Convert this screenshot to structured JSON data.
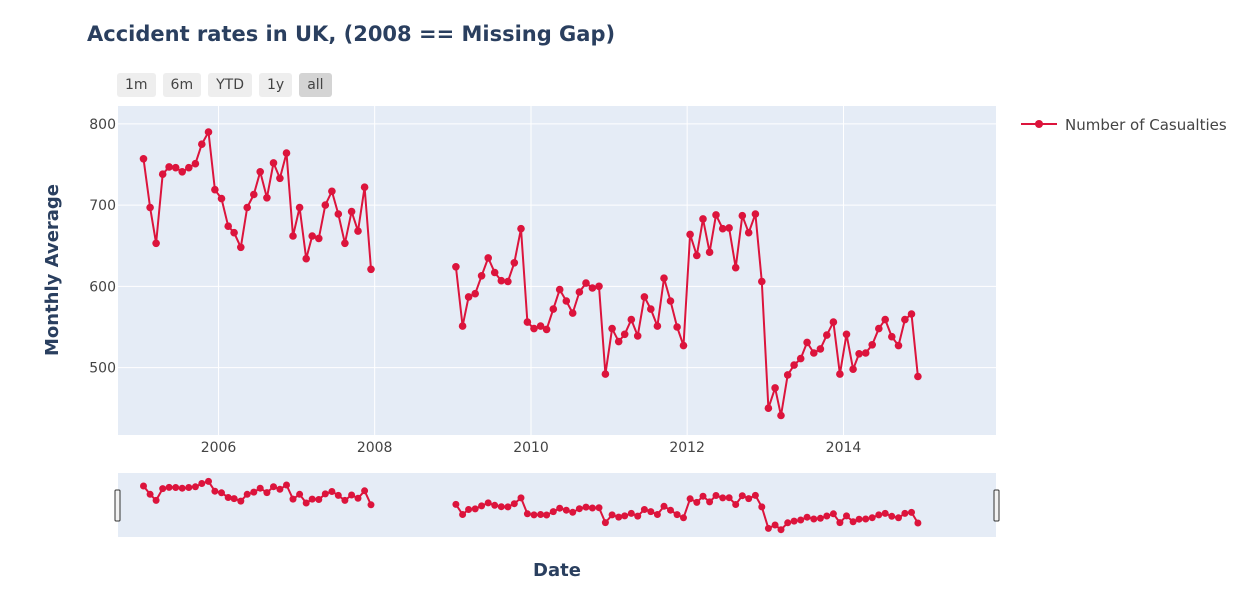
{
  "chart_data": {
    "type": "line",
    "title": "Accident rates in UK, (2008 == Missing Gap)",
    "xlabel": "Date",
    "ylabel": "Monthly Average",
    "x_tick_labels": [
      "2006",
      "2008",
      "2010",
      "2012",
      "2014"
    ],
    "y_tick_labels": [
      "500",
      "600",
      "700",
      "800"
    ],
    "x_range": [
      "2004-09-18",
      "2015-12-15"
    ],
    "ylim": [
      417,
      822
    ],
    "grid": true,
    "legend_position": "top-right",
    "has_range_slider": true,
    "range_selector": [
      "1m",
      "6m",
      "YTD",
      "1y",
      "all"
    ],
    "range_selector_active": "all",
    "series": [
      {
        "name": "Number of Casualties",
        "color": "#dc143c",
        "segments": [
          {
            "start": "2005-01",
            "values": [
              757,
              697,
              653,
              738,
              747,
              746,
              741,
              746,
              751,
              775,
              790,
              719,
              708,
              674,
              666,
              648,
              697,
              713,
              741,
              709,
              752,
              733,
              764,
              662,
              697,
              634,
              662,
              659,
              700,
              717,
              689,
              653,
              692,
              668,
              722,
              621
            ]
          },
          {
            "start": "2009-01",
            "values": [
              624,
              551,
              587,
              591,
              613,
              635,
              617,
              607,
              606,
              629,
              671,
              556,
              548,
              551,
              547,
              572,
              596,
              582,
              567,
              593,
              604,
              598,
              600,
              492,
              548,
              532,
              541,
              559,
              539,
              587,
              572,
              551,
              610,
              582,
              550,
              527,
              664,
              638,
              683,
              642,
              688,
              671,
              672,
              623,
              687,
              666,
              689,
              606,
              450,
              475,
              441,
              491,
              503,
              511,
              531,
              518,
              523,
              540,
              556,
              492,
              541,
              498,
              517,
              518,
              528,
              548,
              559,
              538,
              527,
              559,
              566,
              489
            ]
          }
        ]
      }
    ]
  },
  "colors": {
    "plot_bg": "#e5ecf6",
    "grid": "#ffffff",
    "line": "#dc143c",
    "title": "#2a3f5f"
  }
}
